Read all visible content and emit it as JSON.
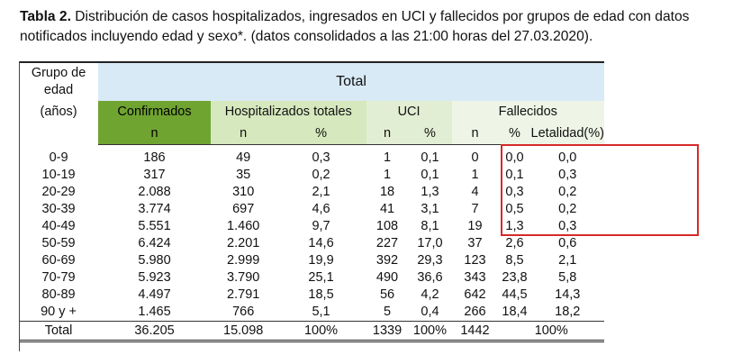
{
  "caption": {
    "label": "Tabla 2.",
    "text": " Distribución de casos hospitalizados, ingresados en UCI y fallecidos por grupos de edad con datos notificados incluyendo edad y sexo*. (datos consolidados a las 21:00 horas del 27.03.2020)."
  },
  "header": {
    "group_lines": [
      "Grupo de",
      "edad",
      "(años)"
    ],
    "total": "Total",
    "confirmados": "Confirmados",
    "hospitalizados": "Hospitalizados totales",
    "uci": "UCI",
    "fallecidos": "Fallecidos",
    "sub": [
      "n",
      "n",
      "%",
      "n",
      "%",
      "n",
      "%",
      "Letalidad(%)"
    ]
  },
  "rows": [
    [
      "0-9",
      "186",
      "49",
      "0,3",
      "1",
      "0,1",
      "0",
      "0,0",
      "0,0"
    ],
    [
      "10-19",
      "317",
      "35",
      "0,2",
      "1",
      "0,1",
      "1",
      "0,1",
      "0,3"
    ],
    [
      "20-29",
      "2.088",
      "310",
      "2,1",
      "18",
      "1,3",
      "4",
      "0,3",
      "0,2"
    ],
    [
      "30-39",
      "3.774",
      "697",
      "4,6",
      "41",
      "3,1",
      "7",
      "0,5",
      "0,2"
    ],
    [
      "40-49",
      "5.551",
      "1.460",
      "9,7",
      "108",
      "8,1",
      "19",
      "1,3",
      "0,3"
    ],
    [
      "50-59",
      "6.424",
      "2.201",
      "14,6",
      "227",
      "17,0",
      "37",
      "2,6",
      "0,6"
    ],
    [
      "60-69",
      "5.980",
      "2.999",
      "19,9",
      "392",
      "29,3",
      "123",
      "8,5",
      "2,1"
    ],
    [
      "70-79",
      "5.923",
      "3.790",
      "25,1",
      "490",
      "36,6",
      "343",
      "23,8",
      "5,8"
    ],
    [
      "80-89",
      "4.497",
      "2.791",
      "18,5",
      "56",
      "4,2",
      "642",
      "44,5",
      "14,3"
    ],
    [
      "90 y +",
      "1.465",
      "766",
      "5,1",
      "5",
      "0,4",
      "266",
      "18,4",
      "18,2"
    ]
  ],
  "total_row": [
    "Total",
    "36.205",
    "15.098",
    "100%",
    "1339",
    "100%",
    "1442",
    "100%",
    ""
  ],
  "highlight": {
    "color": "#d62a2a"
  }
}
